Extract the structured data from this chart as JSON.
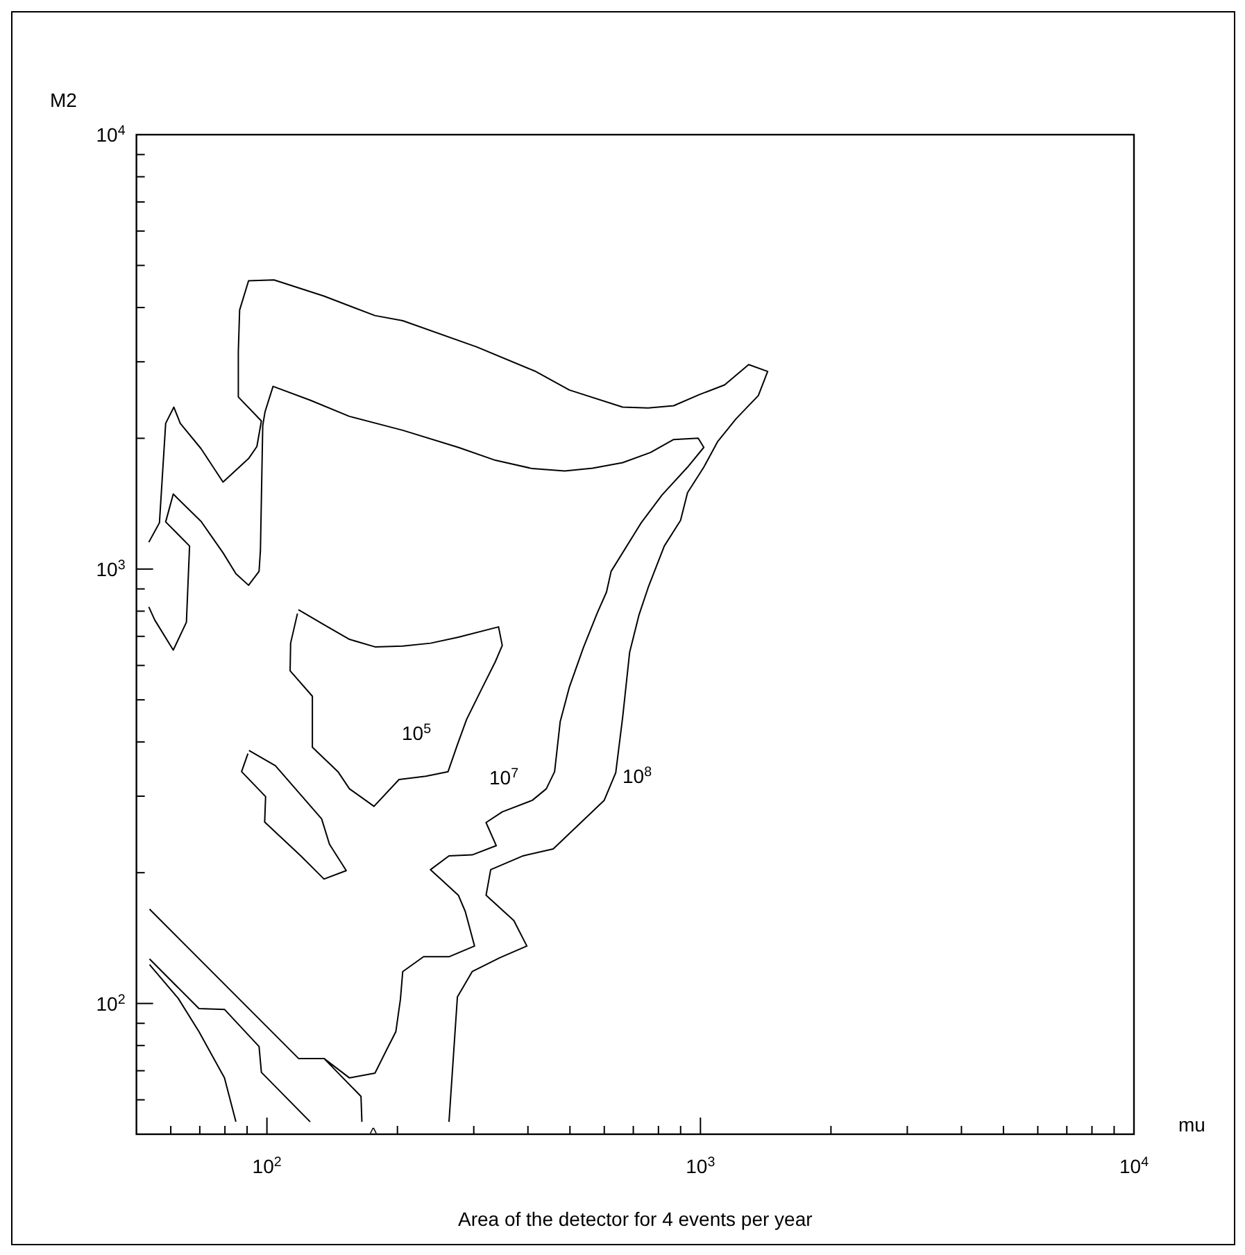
{
  "chart_data": {
    "type": "line",
    "log": "xy",
    "xlabel": "mu",
    "ylabel": "M2",
    "xlim": [
      50,
      10000
    ],
    "ylim": [
      50,
      10000
    ],
    "xticks": [
      {
        "value": 60,
        "label": null
      },
      {
        "value": 70,
        "label": null
      },
      {
        "value": 80,
        "label": null
      },
      {
        "value": 90,
        "label": null
      },
      {
        "value": 100,
        "label": "10$^{2}$"
      },
      {
        "value": 200,
        "label": null
      },
      {
        "value": 300,
        "label": null
      },
      {
        "value": 400,
        "label": null
      },
      {
        "value": 500,
        "label": null
      },
      {
        "value": 600,
        "label": null
      },
      {
        "value": 700,
        "label": null
      },
      {
        "value": 800,
        "label": null
      },
      {
        "value": 900,
        "label": null
      },
      {
        "value": 1000,
        "label": "10$^{3}$"
      },
      {
        "value": 2000,
        "label": null
      },
      {
        "value": 3000,
        "label": null
      },
      {
        "value": 4000,
        "label": null
      },
      {
        "value": 5000,
        "label": null
      },
      {
        "value": 6000,
        "label": null
      },
      {
        "value": 7000,
        "label": null
      },
      {
        "value": 8000,
        "label": null
      },
      {
        "value": 9000,
        "label": null
      },
      {
        "value": 10000,
        "label": "10$^{4}$"
      }
    ],
    "yticks": [
      {
        "value": 60,
        "label": null
      },
      {
        "value": 70,
        "label": null
      },
      {
        "value": 80,
        "label": null
      },
      {
        "value": 90,
        "label": null
      },
      {
        "value": 100,
        "label": "10$^{2}$"
      },
      {
        "value": 200,
        "label": null
      },
      {
        "value": 300,
        "label": null
      },
      {
        "value": 400,
        "label": null
      },
      {
        "value": 500,
        "label": null
      },
      {
        "value": 600,
        "label": null
      },
      {
        "value": 700,
        "label": null
      },
      {
        "value": 800,
        "label": null
      },
      {
        "value": 900,
        "label": null
      },
      {
        "value": 1000,
        "label": "10$^{3}$"
      },
      {
        "value": 2000,
        "label": null
      },
      {
        "value": 3000,
        "label": null
      },
      {
        "value": 4000,
        "label": null
      },
      {
        "value": 5000,
        "label": null
      },
      {
        "value": 6000,
        "label": null
      },
      {
        "value": 7000,
        "label": null
      },
      {
        "value": 8000,
        "label": null
      },
      {
        "value": 9000,
        "label": null
      },
      {
        "value": 10000,
        "label": "10$^{4}$"
      }
    ],
    "series": [
      {
        "color": "#000000",
        "x": [
          53.4,
          56.5,
          57.2,
          58.4,
          61.0,
          63.1,
          70.5,
          79.2,
          90.9,
          94.8,
          97.1,
          85.9,
          85.9,
          86.5,
          90.7,
          103.8,
          135.3,
          177.5,
          205.7,
          304.9,
          414.6,
          498.5,
          661.6,
          757.5,
          867.3,
          993,
          1137,
          1292,
          1429,
          1360,
          1209,
          1095,
          1018,
          933.7,
          899.6,
          825.3,
          757.5,
          721.1,
          686.5,
          661.6,
          637.7,
          599.8,
          457.5,
          390,
          328.2,
          320.3,
          371.2,
          397.7,
          344.8,
          297.5,
          275,
          263
        ],
        "values": [
          1153,
          1278,
          1555,
          2165,
          2359,
          2165,
          1892,
          1586,
          1801,
          1915,
          2192,
          2490,
          3167,
          3948,
          4608,
          4630,
          4250,
          3833,
          3731,
          3245,
          2857,
          2583,
          2359,
          2348,
          2377,
          2520,
          2654,
          2956,
          2850,
          2508,
          2219,
          1963,
          1716,
          1499,
          1294,
          1130,
          906.6,
          782.6,
          643,
          456,
          340,
          293.5,
          226.9,
          218.7,
          203.2,
          177.5,
          155.1,
          135.6,
          127.5,
          118.4,
          103.5,
          53.4
        ]
      },
      {
        "color": "#000000",
        "x": [
          53.4,
          55.1,
          60.8,
          65.2,
          66.3,
          58.4,
          60.8,
          70.5,
          79.2,
          84.8,
          90.7,
          95.9,
          96.6,
          97.8,
          99.0,
          103.3,
          125.8,
          155,
          205.7,
          276.3,
          336.4,
          409.6,
          486.4,
          564,
          661.6,
          766.9,
          867.3,
          987.9,
          1018,
          933.7,
          815.3,
          730,
          622.2,
          607.1,
          578,
          536.9,
          498.5,
          474.7,
          460.9,
          441,
          409.6,
          349,
          320.2,
          338.1,
          297.5,
          263,
          238.4,
          276.4,
          286.7,
          301.2,
          263,
          229.8,
          205.7,
          203.2,
          198.3,
          188.7,
          177.5,
          155,
          135.4,
          164.8,
          165.6
        ],
        "values": [
          817.9,
          763.6,
          651,
          754.3,
          1130,
          1284,
          1488,
          1287,
          1090,
          975.9,
          917.8,
          987.9,
          1103,
          2139,
          2302,
          2634,
          2448,
          2246,
          2087,
          1906,
          1780,
          1703,
          1682,
          1707,
          1758,
          1855,
          1987,
          2001,
          1906,
          1716,
          1481,
          1278,
          987.9,
          885,
          792.4,
          659,
          535,
          445,
          341.7,
          312,
          293.6,
          276,
          260.9,
          230.8,
          219.8,
          218.7,
          203.2,
          177.5,
          162.9,
          135.6,
          128.1,
          128.1,
          118.4,
          102.2,
          86.1,
          78.1,
          69.1,
          67.4,
          74.7,
          61.1,
          53.4
        ]
      },
      {
        "color": "#000000",
        "x": [
          53.6,
          118.3,
          135.4
        ],
        "values": [
          164.9,
          74.7,
          74.7
        ]
      },
      {
        "color": "#000000",
        "x": [
          53.6,
          69.7,
          79.8,
          95.9,
          97.1,
          125.8
        ],
        "values": [
          126.6,
          97.3,
          96.9,
          79.6,
          69.4,
          53.4
        ]
      },
      {
        "color": "#000000",
        "x": [
          53.6,
          62.4,
          69.7,
          79.8,
          84.8
        ],
        "values": [
          122.9,
          102.8,
          86.1,
          67.4,
          53.4
        ]
      },
      {
        "color": "#000000",
        "x": [
          118.2,
          135.3,
          155,
          177.5,
          205.7,
          238.4,
          276.3,
          342.2,
          349,
          336.4,
          312.5,
          288.8,
          274.9,
          261.7,
          232.6,
          201.7,
          176.6,
          155,
          145.8,
          127.3,
          127.3,
          113.1,
          113.4,
          117.6
        ],
        "values": [
          806,
          745,
          689,
          662,
          665,
          675,
          697,
          736,
          667,
          612,
          528.6,
          450.7,
          393.8,
          341.7,
          333.4,
          327.7,
          284.3,
          312,
          341.7,
          389,
          509.6,
          583,
          675,
          790
        ]
      },
      {
        "color": "#000000",
        "x": [
          90.9,
          104.6,
          133.7,
          139.4,
          152.4,
          135.4,
          119.7,
          98.8,
          99.3,
          87.4,
          90.4
        ],
        "values": [
          382.4,
          352.7,
          266.1,
          232.5,
          202.2,
          193.4,
          218.7,
          261.5,
          299.4,
          341.7,
          376
        ]
      }
    ],
    "annotations": [
      "10$^{5}$",
      "10$^{7}$",
      "10$^{8}$",
      "^",
      "Area of the detector for 4 events per year"
    ]
  }
}
